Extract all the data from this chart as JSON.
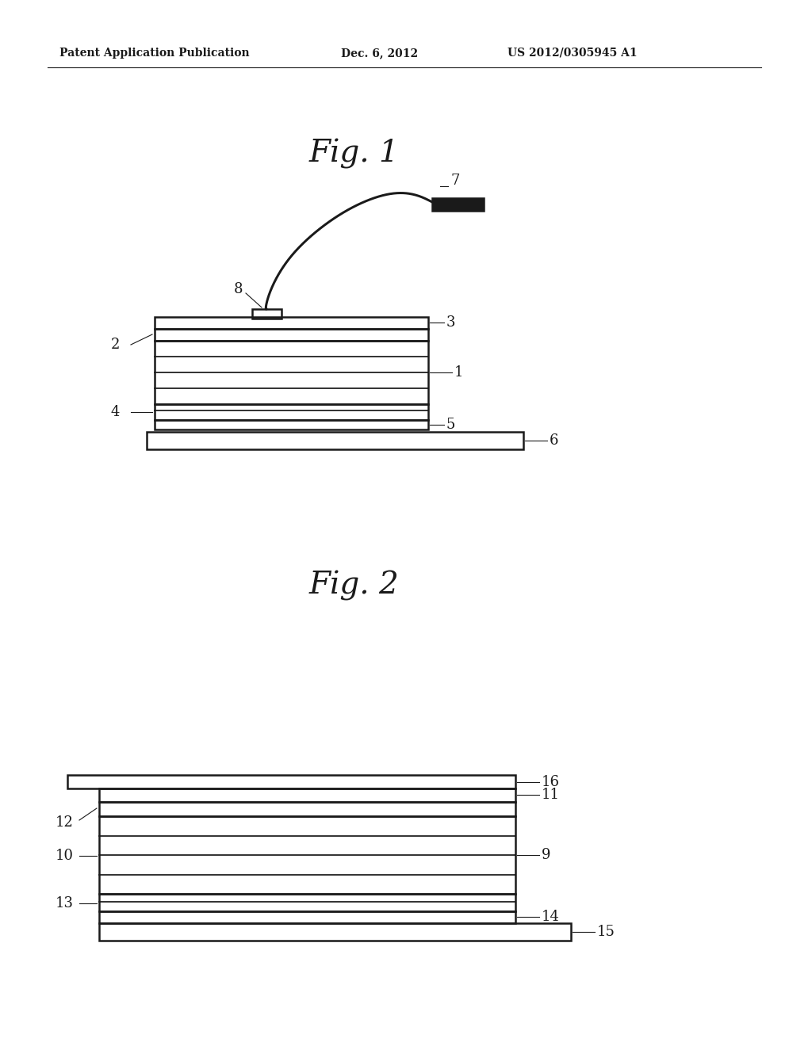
{
  "bg_color": "#ffffff",
  "header_left": "Patent Application Publication",
  "header_center": "Dec. 6, 2012",
  "header_right": "US 2012/0305945 A1",
  "fig1_title": "Fig. 1",
  "fig2_title": "Fig. 2",
  "line_color": "#1a1a1a",
  "line_width": 1.8
}
